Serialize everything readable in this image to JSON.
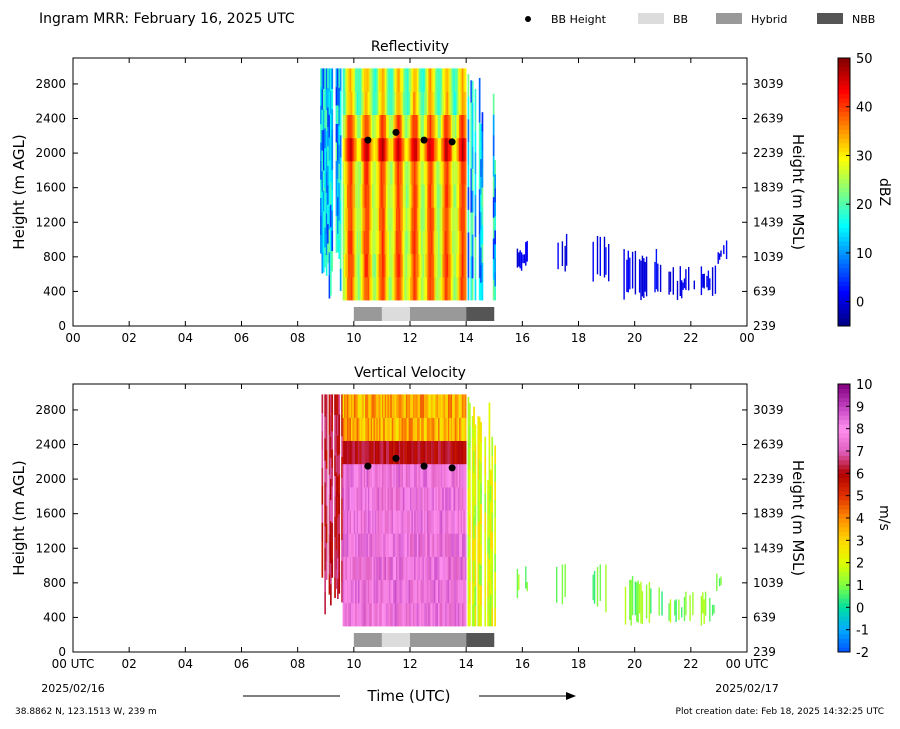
{
  "header": {
    "title": "Ingram MRR:  February 16, 2025 UTC",
    "legend": [
      {
        "label": "BB Height",
        "kind": "dot",
        "color": "#000000"
      },
      {
        "label": "BB",
        "kind": "box",
        "color": "#dcdcdc"
      },
      {
        "label": "Hybrid",
        "kind": "box",
        "color": "#999999"
      },
      {
        "label": "NBB",
        "kind": "box",
        "color": "#555555"
      }
    ]
  },
  "footer": {
    "location": "38.8862 N, 123.1513 W, 239 m",
    "created": "Plot creation date: Feb 18, 2025 14:32:25 UTC",
    "xlabel": "Time (UTC)"
  },
  "chart_data": [
    {
      "type": "heatmap",
      "title": "Reflectivity",
      "ylabel": "Height (m AGL)",
      "y2label": "Height (m MSL)",
      "xlim": [
        0,
        24
      ],
      "ylim": [
        0,
        3100
      ],
      "xticks": [
        "00",
        "02",
        "04",
        "06",
        "08",
        "10",
        "12",
        "14",
        "16",
        "18",
        "20",
        "22",
        "00"
      ],
      "yticks": [
        0,
        400,
        800,
        1200,
        1600,
        2000,
        2400,
        2800
      ],
      "y2ticks": [
        "239",
        "639",
        "1039",
        "1439",
        "1839",
        "2239",
        "2639",
        "3039"
      ],
      "colorbar": {
        "label": "dBZ",
        "min": -5,
        "max": 50,
        "ticks": [
          0,
          10,
          20,
          30,
          40,
          50
        ],
        "colors": [
          "#00007f",
          "#0000ff",
          "#007fff",
          "#00ffff",
          "#7fff7f",
          "#ffff00",
          "#ff7f00",
          "#ff0000",
          "#7f0000"
        ]
      },
      "bb_height": [
        {
          "time": 10.5,
          "height": 2150
        },
        {
          "time": 11.5,
          "height": 2240
        },
        {
          "time": 12.5,
          "height": 2150
        },
        {
          "time": 13.5,
          "height": 2130
        }
      ],
      "bb_type": [
        {
          "start": 10.0,
          "end": 11.0,
          "type": "Hybrid"
        },
        {
          "start": 11.0,
          "end": 12.0,
          "type": "BB"
        },
        {
          "start": 12.0,
          "end": 14.0,
          "type": "Hybrid"
        },
        {
          "start": 14.0,
          "end": 15.0,
          "type": "NBB"
        }
      ]
    },
    {
      "type": "heatmap",
      "title": "Vertical Velocity",
      "ylabel": "Height (m AGL)",
      "y2label": "Height (m MSL)",
      "xlim": [
        0,
        24
      ],
      "ylim": [
        0,
        3100
      ],
      "xticks": [
        "00 UTC",
        "02",
        "04",
        "06",
        "08",
        "10",
        "12",
        "14",
        "16",
        "18",
        "20",
        "22",
        "00 UTC"
      ],
      "xdates": [
        "2025/02/16",
        "2025/02/17"
      ],
      "yticks": [
        0,
        400,
        800,
        1200,
        1600,
        2000,
        2400,
        2800
      ],
      "y2ticks": [
        "239",
        "639",
        "1039",
        "1439",
        "1839",
        "2239",
        "2639",
        "3039"
      ],
      "colorbar": {
        "label": "m/s",
        "min": -2,
        "max": 10,
        "ticks": [
          -2,
          -1,
          0,
          1,
          2,
          3,
          4,
          5,
          6,
          7,
          8,
          9,
          10
        ],
        "colors": [
          "#0050ff",
          "#00aaff",
          "#00e0a0",
          "#80ff40",
          "#e0ff00",
          "#ffd700",
          "#ff8c00",
          "#e03000",
          "#b00000",
          "#e060c0",
          "#ff90f0",
          "#c040c0",
          "#800080"
        ]
      },
      "bb_height": [
        {
          "time": 10.5,
          "height": 2150
        },
        {
          "time": 11.5,
          "height": 2240
        },
        {
          "time": 12.5,
          "height": 2150
        },
        {
          "time": 13.5,
          "height": 2130
        }
      ],
      "bb_type": [
        {
          "start": 10.0,
          "end": 11.0,
          "type": "Hybrid"
        },
        {
          "start": 11.0,
          "end": 12.0,
          "type": "BB"
        },
        {
          "start": 12.0,
          "end": 14.0,
          "type": "Hybrid"
        },
        {
          "start": 14.0,
          "end": 15.0,
          "type": "NBB"
        }
      ]
    }
  ]
}
